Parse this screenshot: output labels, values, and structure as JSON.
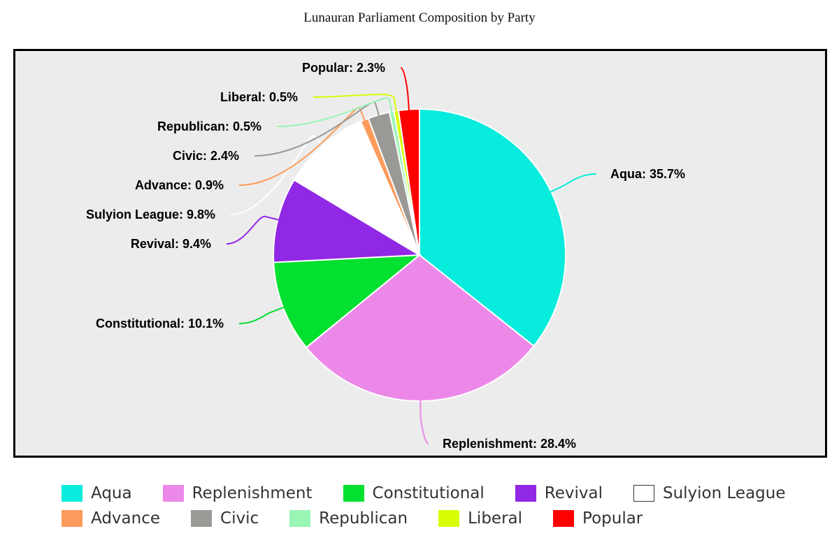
{
  "chart_data": {
    "type": "pie",
    "title": "Lunauran Parliament Composition by Party",
    "slices": [
      {
        "name": "Aqua",
        "value": 35.7,
        "label": "Aqua: 35.7%",
        "color": "#07ecdc"
      },
      {
        "name": "Replenishment",
        "value": 28.4,
        "label": "Replenishment: 28.4%",
        "color": "#ec88e8"
      },
      {
        "name": "Constitutional",
        "value": 10.1,
        "label": "Constitutional: 10.1%",
        "color": "#03e02f"
      },
      {
        "name": "Revival",
        "value": 9.4,
        "label": "Revival: 9.4%",
        "color": "#9128e5"
      },
      {
        "name": "Sulyion League",
        "value": 9.8,
        "label": "Sulyion League: 9.8%",
        "color": "#ffffff"
      },
      {
        "name": "Advance",
        "value": 0.9,
        "label": "Advance: 0.9%",
        "color": "#fd9b5c"
      },
      {
        "name": "Civic",
        "value": 2.4,
        "label": "Civic: 2.4%",
        "color": "#9a9996"
      },
      {
        "name": "Republican",
        "value": 0.5,
        "label": "Republican: 0.5%",
        "color": "#98f5b3"
      },
      {
        "name": "Liberal",
        "value": 0.5,
        "label": "Liberal: 0.5%",
        "color": "#d9fd05"
      },
      {
        "name": "Popular",
        "value": 2.3,
        "label": "Popular: 2.3%",
        "color": "#fe0000"
      }
    ],
    "legend_placement": "bottom",
    "legend_rows": [
      [
        "Aqua",
        "Replenishment",
        "Constitutional",
        "Revival",
        "Sulyion League"
      ],
      [
        "Advance",
        "Civic",
        "Republican",
        "Liberal",
        "Popular"
      ]
    ]
  }
}
